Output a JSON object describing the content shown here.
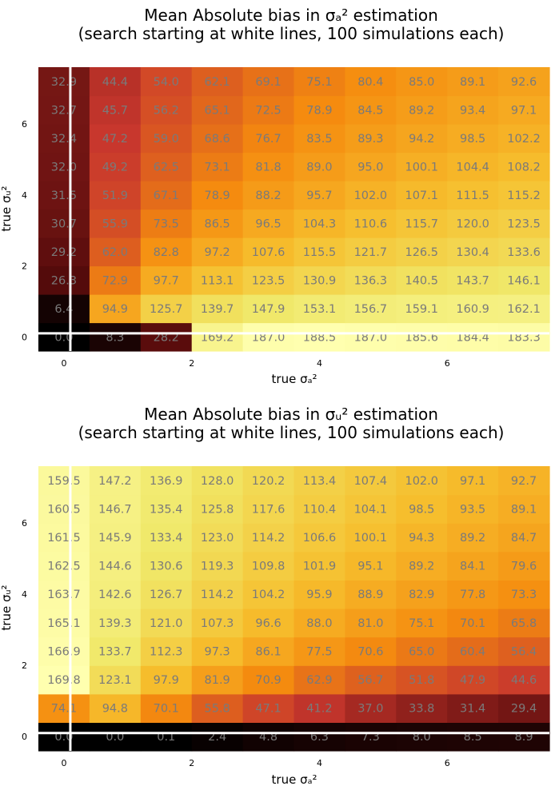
{
  "colors": {
    "whiteline": "#ffffff",
    "cell_text": "#7a7a7a"
  },
  "chart_data": [
    {
      "type": "heatmap",
      "title_line1": "Mean Absolute bias in σₐ² estimation",
      "title_line2": "(search starting at white lines, 100 simulations each)",
      "xlabel": "true σₐ²",
      "ylabel": "true σᵤ²",
      "x": [
        0.0,
        0.8,
        1.6,
        2.4,
        3.2,
        4.0,
        4.8,
        5.6,
        6.4,
        7.2
      ],
      "y": [
        0.0,
        0.8,
        1.6,
        2.4,
        3.2,
        4.0,
        4.8,
        5.6,
        6.4,
        7.2
      ],
      "xticks": [
        "0",
        "2",
        "4",
        "6"
      ],
      "yticks": [
        "0",
        "2",
        "4",
        "6"
      ],
      "colorscale": "heat",
      "clim": [
        0,
        188.5
      ],
      "white_lines": {
        "x": 0.1,
        "y": 0.1
      },
      "values": [
        [
          0.0,
          8.3,
          28.2,
          169.2,
          187.0,
          188.5,
          187.0,
          185.6,
          184.4,
          183.3
        ],
        [
          6.4,
          94.9,
          125.7,
          139.7,
          147.9,
          153.1,
          156.7,
          159.1,
          160.9,
          162.1
        ],
        [
          26.3,
          72.9,
          97.7,
          113.1,
          123.5,
          130.9,
          136.3,
          140.5,
          143.7,
          146.1
        ],
        [
          29.2,
          62.0,
          82.8,
          97.2,
          107.6,
          115.5,
          121.7,
          126.5,
          130.4,
          133.6
        ],
        [
          30.7,
          55.9,
          73.5,
          86.5,
          96.5,
          104.3,
          110.6,
          115.7,
          120.0,
          123.5
        ],
        [
          31.5,
          51.9,
          67.1,
          78.9,
          88.2,
          95.7,
          102.0,
          107.1,
          111.5,
          115.2
        ],
        [
          32.0,
          49.2,
          62.5,
          73.1,
          81.8,
          89.0,
          95.0,
          100.1,
          104.4,
          108.2
        ],
        [
          32.4,
          47.2,
          59.0,
          68.6,
          76.7,
          83.5,
          89.3,
          94.2,
          98.5,
          102.2
        ],
        [
          32.7,
          45.7,
          56.2,
          65.1,
          72.5,
          78.9,
          84.5,
          89.2,
          93.4,
          97.1
        ],
        [
          32.9,
          44.4,
          54.0,
          62.1,
          69.1,
          75.1,
          80.4,
          85.0,
          89.1,
          92.6
        ]
      ]
    },
    {
      "type": "heatmap",
      "title_line1": "Mean Absolute bias in σᵤ² estimation",
      "title_line2": "(search starting at white lines, 100 simulations each)",
      "xlabel": "true σₐ²",
      "ylabel": "true σᵤ²",
      "x": [
        0.0,
        0.8,
        1.6,
        2.4,
        3.2,
        4.0,
        4.8,
        5.6,
        6.4,
        7.2
      ],
      "y": [
        0.0,
        0.8,
        1.6,
        2.4,
        3.2,
        4.0,
        4.8,
        5.6,
        6.4,
        7.2
      ],
      "xticks": [
        "0",
        "2",
        "4",
        "6"
      ],
      "yticks": [
        "0",
        "2",
        "4",
        "6"
      ],
      "colorscale": "heat",
      "clim": [
        0,
        169.8
      ],
      "white_lines": {
        "x": 0.1,
        "y": 0.1
      },
      "values": [
        [
          0.0,
          0.0,
          0.1,
          2.4,
          4.8,
          6.3,
          7.3,
          8.0,
          8.5,
          8.9
        ],
        [
          74.1,
          94.8,
          70.1,
          55.8,
          47.1,
          41.2,
          37.0,
          33.8,
          31.4,
          29.4
        ],
        [
          169.8,
          123.1,
          97.9,
          81.9,
          70.9,
          62.9,
          56.7,
          51.8,
          47.9,
          44.6
        ],
        [
          166.9,
          133.7,
          112.3,
          97.3,
          86.1,
          77.5,
          70.6,
          65.0,
          60.4,
          56.4
        ],
        [
          165.1,
          139.3,
          121.0,
          107.3,
          96.6,
          88.0,
          81.0,
          75.1,
          70.1,
          65.8
        ],
        [
          163.7,
          142.6,
          126.7,
          114.2,
          104.2,
          95.9,
          88.9,
          82.9,
          77.8,
          73.3
        ],
        [
          162.5,
          144.6,
          130.6,
          119.3,
          109.8,
          101.9,
          95.1,
          89.2,
          84.1,
          79.6
        ],
        [
          161.5,
          145.9,
          133.4,
          123.0,
          114.2,
          106.6,
          100.1,
          94.3,
          89.2,
          84.7
        ],
        [
          160.5,
          146.7,
          135.4,
          125.8,
          117.6,
          110.4,
          104.1,
          98.5,
          93.5,
          89.1
        ],
        [
          159.5,
          147.2,
          136.9,
          128.0,
          120.2,
          113.4,
          107.4,
          102.0,
          97.1,
          92.7
        ]
      ]
    }
  ]
}
